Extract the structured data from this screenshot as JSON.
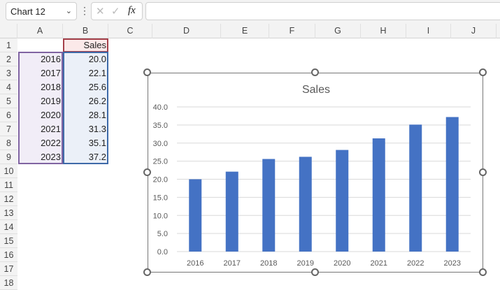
{
  "formula_bar": {
    "name_box": "Chart 12",
    "fx_label": "fx",
    "formula": ""
  },
  "columns": [
    "A",
    "B",
    "C",
    "D",
    "E",
    "F",
    "G",
    "H",
    "I",
    "J"
  ],
  "rows": [
    "1",
    "2",
    "3",
    "4",
    "5",
    "6",
    "7",
    "8",
    "9",
    "10",
    "11",
    "12",
    "13",
    "14",
    "15",
    "16",
    "17",
    "18"
  ],
  "cells": {
    "B1": "Sales",
    "years": [
      "2016",
      "2017",
      "2018",
      "2019",
      "2020",
      "2021",
      "2022",
      "2023"
    ],
    "sales": [
      "20.0",
      "22.1",
      "25.6",
      "26.2",
      "28.1",
      "31.3",
      "35.1",
      "37.2"
    ]
  },
  "chart_data": {
    "type": "bar",
    "title": "Sales",
    "categories": [
      "2016",
      "2017",
      "2018",
      "2019",
      "2020",
      "2021",
      "2022",
      "2023"
    ],
    "values": [
      20.0,
      22.1,
      25.6,
      26.2,
      28.1,
      31.3,
      35.1,
      37.2
    ],
    "ylim": [
      0,
      40
    ],
    "yticks": [
      "0.0",
      "5.0",
      "10.0",
      "15.0",
      "20.0",
      "25.0",
      "30.0",
      "35.0",
      "40.0"
    ],
    "grid": true,
    "bar_color": "#4472c4"
  }
}
